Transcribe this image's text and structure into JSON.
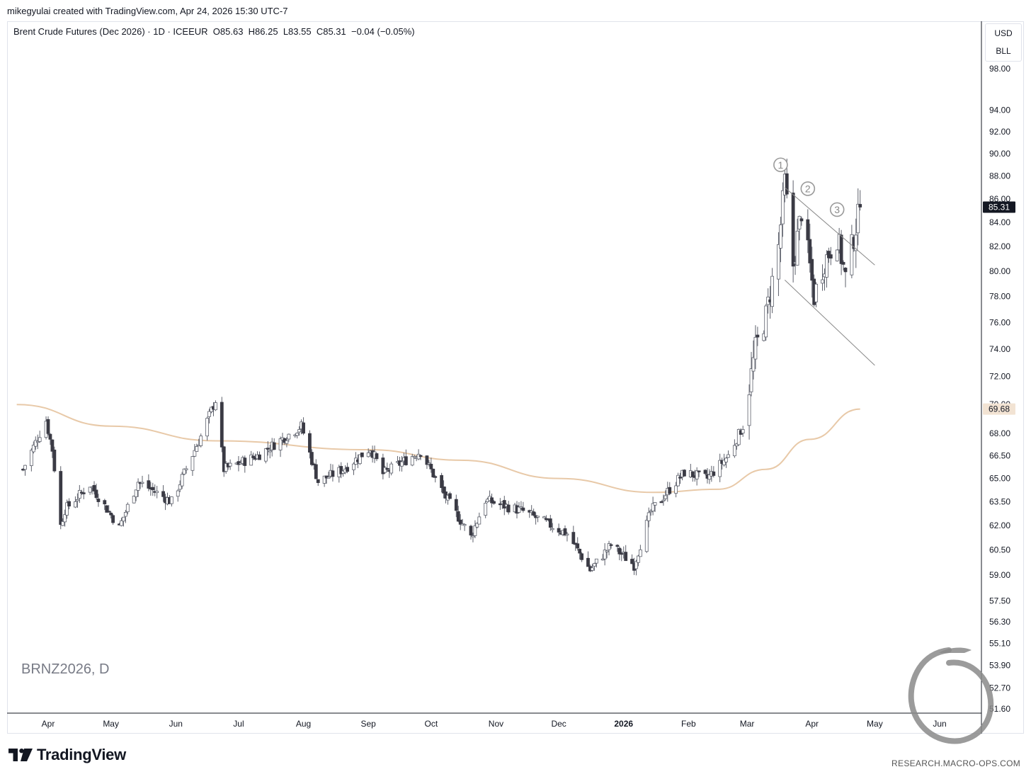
{
  "header": {
    "text": "mikegyulai created with TradingView.com, Apr 24, 2026 15:30 UTC-7"
  },
  "legend": {
    "symbol_desc": "Brent Crude Futures (Dec 2026) · 1D · ICEEUR",
    "open": "O85.63",
    "high": "H86.25",
    "low": "L83.55",
    "close": "C85.31",
    "change": "−0.04 (−0.05%)"
  },
  "units": {
    "currency": "USD",
    "unit": "BLL"
  },
  "watermark": {
    "symbol": "BRNZ2026, D"
  },
  "brand": {
    "logo_text": "TradingView",
    "site": "RESEARCH.MACRO-OPS.COM"
  },
  "colors": {
    "up_candle": "#ffffff",
    "down_candle": "#3a3a44",
    "wick": "#5d606b",
    "ma": "#e8c9a8",
    "last_price_bg": "#131722",
    "ma_label_bg": "#f2e3d3"
  },
  "chart_data": {
    "type": "candlestick",
    "symbol": "BRNZ2026",
    "interval": "1D",
    "y_scale": "log",
    "ylim": [
      51.6,
      98.0
    ],
    "y_ticks": [
      "98.00",
      "94.00",
      "92.00",
      "90.00",
      "88.00",
      "86.00",
      "84.00",
      "82.00",
      "80.00",
      "78.00",
      "76.00",
      "74.00",
      "72.00",
      "70.00",
      "68.00",
      "66.50",
      "65.00",
      "63.50",
      "62.00",
      "60.50",
      "59.00",
      "57.50",
      "56.30",
      "55.10",
      "53.90",
      "52.70",
      "51.60"
    ],
    "x_ticks": [
      {
        "label": "Apr",
        "bold": false
      },
      {
        "label": "May",
        "bold": false
      },
      {
        "label": "Jun",
        "bold": false
      },
      {
        "label": "Jul",
        "bold": false
      },
      {
        "label": "Aug",
        "bold": false
      },
      {
        "label": "Sep",
        "bold": false
      },
      {
        "label": "Oct",
        "bold": false
      },
      {
        "label": "Nov",
        "bold": false
      },
      {
        "label": "Dec",
        "bold": false
      },
      {
        "label": "2026",
        "bold": true
      },
      {
        "label": "Feb",
        "bold": false
      },
      {
        "label": "Mar",
        "bold": false
      },
      {
        "label": "Apr",
        "bold": false
      },
      {
        "label": "May",
        "bold": false
      },
      {
        "label": "Jun",
        "bold": false
      }
    ],
    "last_price": {
      "value": 85.31,
      "label": "85.31"
    },
    "ma_value": {
      "value": 69.68,
      "label": "69.68"
    },
    "price_anchors": [
      {
        "date": "2025-03-20",
        "close": 65.6
      },
      {
        "date": "2025-03-31",
        "close": 68.9
      },
      {
        "date": "2025-04-03",
        "close": 66.9
      },
      {
        "date": "2025-04-07",
        "close": 62.0
      },
      {
        "date": "2025-04-09",
        "close": 63.0
      },
      {
        "date": "2025-04-21",
        "close": 64.6
      },
      {
        "date": "2025-05-05",
        "close": 61.9
      },
      {
        "date": "2025-05-14",
        "close": 64.8
      },
      {
        "date": "2025-05-30",
        "close": 63.5
      },
      {
        "date": "2025-06-13",
        "close": 67.8
      },
      {
        "date": "2025-06-20",
        "close": 70.3
      },
      {
        "date": "2025-06-24",
        "close": 65.6
      },
      {
        "date": "2025-07-10",
        "close": 66.5
      },
      {
        "date": "2025-07-31",
        "close": 68.5
      },
      {
        "date": "2025-08-08",
        "close": 64.8
      },
      {
        "date": "2025-08-20",
        "close": 65.6
      },
      {
        "date": "2025-09-02",
        "close": 67.0
      },
      {
        "date": "2025-09-08",
        "close": 65.3
      },
      {
        "date": "2025-09-26",
        "close": 66.8
      },
      {
        "date": "2025-10-07",
        "close": 64.0
      },
      {
        "date": "2025-10-20",
        "close": 61.3
      },
      {
        "date": "2025-10-27",
        "close": 63.6
      },
      {
        "date": "2025-11-14",
        "close": 62.9
      },
      {
        "date": "2025-12-05",
        "close": 61.5
      },
      {
        "date": "2025-12-16",
        "close": 59.3
      },
      {
        "date": "2025-12-26",
        "close": 60.8
      },
      {
        "date": "2026-01-06",
        "close": 59.6
      },
      {
        "date": "2026-01-14",
        "close": 62.9
      },
      {
        "date": "2026-01-30",
        "close": 65.4
      },
      {
        "date": "2026-02-10",
        "close": 65.0
      },
      {
        "date": "2026-02-20",
        "close": 66.5
      },
      {
        "date": "2026-02-27",
        "close": 68.5
      },
      {
        "date": "2026-03-05",
        "close": 74.0
      },
      {
        "date": "2026-03-10",
        "close": 76.5
      },
      {
        "date": "2026-03-16",
        "close": 82.0
      },
      {
        "date": "2026-03-19",
        "close": 87.5
      },
      {
        "date": "2026-03-23",
        "close": 80.5
      },
      {
        "date": "2026-03-27",
        "close": 85.0
      },
      {
        "date": "2026-04-02",
        "close": 78.0
      },
      {
        "date": "2026-04-07",
        "close": 80.8
      },
      {
        "date": "2026-04-13",
        "close": 82.8
      },
      {
        "date": "2026-04-17",
        "close": 79.5
      },
      {
        "date": "2026-04-21",
        "close": 82.8
      },
      {
        "date": "2026-04-24",
        "close": 85.31
      }
    ],
    "moving_average": [
      {
        "date": "2025-03-17",
        "value": 70.0
      },
      {
        "date": "2025-05-01",
        "value": 68.5
      },
      {
        "date": "2025-06-20",
        "value": 67.5
      },
      {
        "date": "2025-09-01",
        "value": 66.9
      },
      {
        "date": "2025-10-15",
        "value": 66.2
      },
      {
        "date": "2025-12-01",
        "value": 65.0
      },
      {
        "date": "2026-01-15",
        "value": 64.1
      },
      {
        "date": "2026-02-15",
        "value": 64.3
      },
      {
        "date": "2026-03-10",
        "value": 65.6
      },
      {
        "date": "2026-03-31",
        "value": 67.6
      },
      {
        "date": "2026-04-24",
        "value": 69.68
      }
    ],
    "annotations": [
      {
        "label": "1",
        "date": "2026-03-17",
        "price": 89.0
      },
      {
        "label": "2",
        "date": "2026-03-30",
        "price": 86.9
      },
      {
        "label": "3",
        "date": "2026-04-13",
        "price": 85.1
      }
    ],
    "trendlines": [
      {
        "from": {
          "date": "2026-03-19",
          "price": 87.0
        },
        "to": {
          "date": "2026-05-01",
          "price": 80.5
        }
      },
      {
        "from": {
          "date": "2026-03-19",
          "price": 79.3
        },
        "to": {
          "date": "2026-05-01",
          "price": 72.8
        }
      }
    ]
  }
}
